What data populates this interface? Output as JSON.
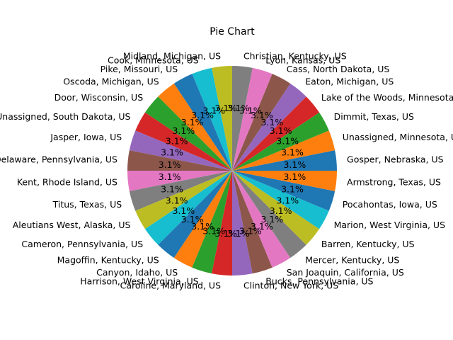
{
  "chart_data": {
    "type": "pie",
    "title": "Pie Chart",
    "start_angle_deg": 0,
    "direction": "counterclockwise",
    "categories": [
      "Gosper, Nebraska, US",
      "Unassigned, Minnesota, US",
      "Dimmit, Texas, US",
      "Lake of the Woods, Minnesota, US",
      "Eaton, Michigan, US",
      "Cass, North Dakota, US",
      "Lyon, Kansas, US",
      "Christian, Kentucky, US",
      "Midland, Michigan, US",
      "Cook, Minnesota, US",
      "Pike, Missouri, US",
      "Oscoda, Michigan, US",
      "Door, Wisconsin, US",
      "Unassigned, South Dakota, US",
      "Jasper, Iowa, US",
      "Delaware, Pennsylvania, US",
      "Kent, Rhode Island, US",
      "Titus, Texas, US",
      "Aleutians West, Alaska, US",
      "Cameron, Pennsylvania, US",
      "Magoffin, Kentucky, US",
      "Canyon, Idaho, US",
      "Harrison, West Virginia, US",
      "Caroline, Maryland, US",
      "Clinton, New York, US",
      "Bucks, Pennsylvania, US",
      "San Joaquin, California, US",
      "Mercer, Kentucky, US",
      "Barren, Kentucky, US",
      "Marion, West Virginia, US",
      "Pocahontas, Iowa, US",
      "Armstrong, Texas, US"
    ],
    "values": [
      1,
      1,
      1,
      1,
      1,
      1,
      1,
      1,
      1,
      1,
      1,
      1,
      1,
      1,
      1,
      1,
      1,
      1,
      1,
      1,
      1,
      1,
      1,
      1,
      1,
      1,
      1,
      1,
      1,
      1,
      1,
      1
    ],
    "percent_labels": [
      "3.1%",
      "3.1%",
      "3.1%",
      "3.1%",
      "3.1%",
      "3.1%",
      "3.1%",
      "3.1%",
      "3.1%",
      "3.1%",
      "3.1%",
      "3.1%",
      "3.1%",
      "3.1%",
      "3.1%",
      "3.1%",
      "3.1%",
      "3.1%",
      "3.1%",
      "3.1%",
      "3.1%",
      "3.1%",
      "3.1%",
      "3.1%",
      "3.1%",
      "3.1%",
      "3.1%",
      "3.1%",
      "3.1%",
      "3.1%",
      "3.1%",
      "3.1%"
    ],
    "colors": [
      "#1f77b4",
      "#ff7f0e",
      "#2ca02c",
      "#d62728",
      "#9467bd",
      "#8c564b",
      "#e377c2",
      "#7f7f7f",
      "#bcbd22",
      "#17becf"
    ]
  }
}
